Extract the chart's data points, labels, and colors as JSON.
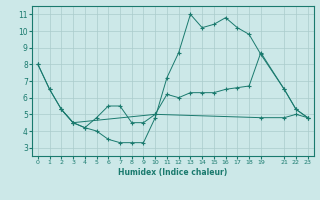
{
  "xlabel": "Humidex (Indice chaleur)",
  "bg_color": "#cce8e8",
  "line_color": "#1a7a6e",
  "grid_color": "#aacccc",
  "xlim": [
    -0.5,
    23.5
  ],
  "ylim": [
    2.5,
    11.5
  ],
  "xticks": [
    0,
    1,
    2,
    3,
    4,
    5,
    6,
    7,
    8,
    9,
    10,
    11,
    12,
    13,
    14,
    15,
    16,
    17,
    18,
    19,
    21,
    22,
    23
  ],
  "yticks": [
    3,
    4,
    5,
    6,
    7,
    8,
    9,
    10,
    11
  ],
  "lines": [
    {
      "x": [
        0,
        1,
        2,
        3,
        4,
        5,
        6,
        7,
        8,
        9,
        10,
        11,
        12,
        13,
        14,
        15,
        16,
        17,
        18,
        19,
        21,
        22,
        23
      ],
      "y": [
        8.0,
        6.5,
        5.3,
        4.5,
        4.2,
        4.0,
        3.5,
        3.3,
        3.3,
        3.3,
        4.8,
        7.2,
        8.7,
        11.0,
        10.2,
        10.4,
        10.8,
        10.2,
        9.8,
        8.6,
        6.5,
        5.3,
        4.8
      ]
    },
    {
      "x": [
        0,
        1,
        2,
        3,
        10,
        11,
        12,
        13,
        14,
        15,
        16,
        17,
        18,
        19,
        21,
        22,
        23
      ],
      "y": [
        8.0,
        6.5,
        5.3,
        4.5,
        5.0,
        6.2,
        6.0,
        6.3,
        6.3,
        6.3,
        6.5,
        6.6,
        6.7,
        8.7,
        6.5,
        5.3,
        4.8
      ]
    },
    {
      "x": [
        2,
        3,
        4,
        5,
        6,
        7,
        8,
        9,
        10,
        19,
        21,
        22,
        23
      ],
      "y": [
        5.3,
        4.5,
        4.2,
        4.8,
        5.5,
        5.5,
        4.5,
        4.5,
        5.0,
        4.8,
        4.8,
        5.0,
        4.8
      ]
    }
  ]
}
